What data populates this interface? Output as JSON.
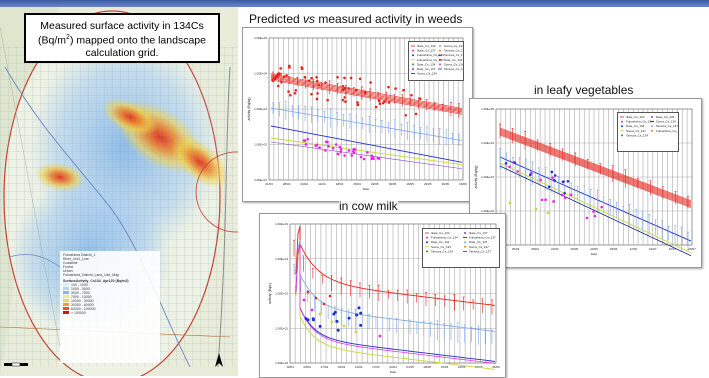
{
  "caption": {
    "line1": "Measured surface activity in 134Cs",
    "line2_pre": "(Bq/m",
    "line2_sup": "2",
    "line2_post": ") mapped onto the landscape",
    "line3": "calculation grid."
  },
  "titles": {
    "weeds_pre": "Predicted ",
    "weeds_italic": "vs",
    "weeds_post": " measured activity in weeds",
    "leafy": "in leafy vegetables",
    "milk": "in cow milk"
  },
  "map_legend": {
    "items": [
      "Fukushima Daiichi_1",
      "River_xxx1_Line",
      "Coastline",
      "Forest",
      "Urban",
      "Fukushima_Daiichi_Land_Use_Map"
    ],
    "heading": "SurfaceActivity_Cs134_Apr120 (Bq/m2)",
    "classes": [
      "100 - 1000",
      "1000 - 3000",
      "3000 - 7000",
      "7000 - 10000",
      "10000 - 30000",
      "30000 - 60000",
      "60000 - 100000",
      "> 100000"
    ]
  },
  "weeds": {
    "yticks": [
      "1.00E+05",
      "1.00E+04",
      "1.00E+03",
      "1.00E+02",
      "1.00E+01"
    ],
    "xticks": [
      "21/03",
      "28/03",
      "04/04",
      "11/04",
      "18/04",
      "25/04",
      "02/05",
      "09/05",
      "16/05",
      "23/05",
      "30/05",
      "06/06"
    ],
    "xlabel": "Date",
    "ylabel": "activity (Bq/kg)",
    "legend": [
      "Iitate_Cs_134",
      "Iitate_Cs_137",
      "Fukushima_Cs_134",
      "Fukushima_Cs_137",
      "Date_Cs_134",
      "Date_Cs_137",
      "Soma_Cs_134",
      "Soma_Cs_137",
      "Tamura_Cs_134",
      "Tamura_Cs_137",
      "Date_Cs_134",
      "Soma_Cs_134",
      "Tamura_Cs_134"
    ]
  },
  "leafy": {
    "yticks": [
      "1.00E+05",
      "1.00E+04",
      "1.00E+03",
      "1.00E+02",
      "1.00E+01"
    ],
    "xticks": [
      "11/03",
      "25/03",
      "08/04",
      "22/04",
      "06/05",
      "20/05",
      "03/06",
      "17/06",
      "01/07",
      "15/07",
      "29/07"
    ],
    "xlabel": "Date",
    "ylabel": "activity (Bq/kg)",
    "legend": [
      "Iitate_Cs_134",
      "Fukushima_Cs_134",
      "Date_Cs_134",
      "Soma_Cs_137",
      "Tamura_Cs_134",
      "Date_Cs_134",
      "Soma_Cs_134",
      "Tamura_Cs_137",
      "Fukushima_Cs_134"
    ]
  },
  "milk": {
    "yticks": [
      "1.00E+04",
      "1.00E+03",
      "1.00E+02",
      "1.00E+01",
      "1.00E+00"
    ],
    "xticks": [
      "13/03",
      "20/03",
      "27/03",
      "03/04",
      "10/04",
      "17/04",
      "24/04",
      "01/05",
      "08/05",
      "15/05",
      "22/05",
      "29/05",
      "05/06"
    ],
    "xlabel": "Date",
    "ylabel": "activity (Bq/L)",
    "legend": [
      "Iitate_Cs_134",
      "Fukushima_Cs_134",
      "Date_Cs_134",
      "Soma_Cs_134",
      "Tamura_Cs_134",
      "Iitate_Cs_137",
      "Fukushima_Cs_137",
      "Date_Cs_137",
      "Soma_Cs_137",
      "Tamura_Cs_137"
    ]
  },
  "colors": {
    "red": "#e8231c",
    "magenta": "#ee22ee",
    "blue": "#1d2fd6",
    "lightblue": "#79a7ea",
    "yellowgreen": "#c7d83a",
    "navy": "#0d1f8f"
  }
}
